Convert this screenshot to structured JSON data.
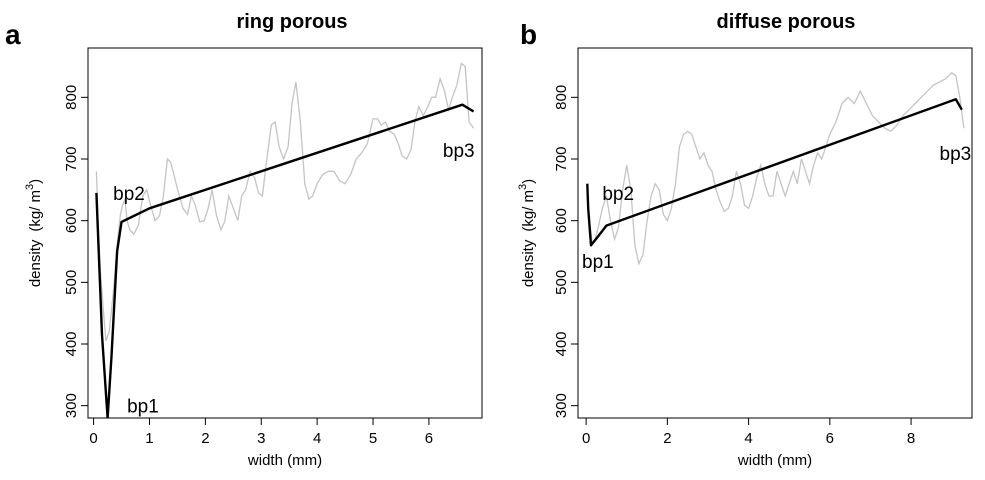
{
  "chart_data": [
    {
      "panel": "a",
      "type": "line",
      "title": "ring porous",
      "xlabel": "width (mm)",
      "ylabel": {
        "prefix": "density",
        "unit_base": "(kg/ m",
        "unit_exp": "3",
        "unit_close": ")"
      },
      "xlim": [
        -0.1,
        6.95
      ],
      "ylim": [
        280,
        880
      ],
      "x_ticks": [
        0,
        1,
        2,
        3,
        4,
        5,
        6
      ],
      "y_ticks": [
        300,
        400,
        500,
        600,
        700,
        800
      ],
      "grid": false,
      "series": [
        {
          "role": "fit",
          "x": [
            0.05,
            0.15,
            0.25,
            0.32,
            0.42,
            0.5,
            1.0,
            6.6,
            6.8
          ],
          "y": [
            645,
            415,
            280,
            380,
            550,
            598,
            620,
            788,
            777
          ]
        },
        {
          "role": "raw",
          "x": [
            0.05,
            0.08,
            0.12,
            0.18,
            0.22,
            0.28,
            0.35,
            0.42,
            0.48,
            0.52,
            0.56,
            0.6,
            0.65,
            0.72,
            0.8,
            0.88,
            0.95,
            1.02,
            1.1,
            1.18,
            1.25,
            1.32,
            1.38,
            1.45,
            1.52,
            1.6,
            1.68,
            1.75,
            1.82,
            1.9,
            1.98,
            2.05,
            2.12,
            2.2,
            2.28,
            2.35,
            2.42,
            2.5,
            2.58,
            2.65,
            2.72,
            2.8,
            2.88,
            2.95,
            3.02,
            3.1,
            3.18,
            3.25,
            3.32,
            3.4,
            3.48,
            3.55,
            3.62,
            3.7,
            3.78,
            3.85,
            3.92,
            4.0,
            4.1,
            4.2,
            4.3,
            4.4,
            4.5,
            4.6,
            4.7,
            4.8,
            4.9,
            5.0,
            5.08,
            5.15,
            5.22,
            5.3,
            5.38,
            5.45,
            5.52,
            5.6,
            5.68,
            5.75,
            5.82,
            5.9,
            5.98,
            6.05,
            6.12,
            6.2,
            6.28,
            6.35,
            6.42,
            6.5,
            6.58,
            6.65,
            6.72,
            6.8
          ],
          "y": [
            680,
            600,
            520,
            450,
            405,
            420,
            480,
            560,
            610,
            625,
            635,
            600,
            585,
            578,
            592,
            640,
            650,
            625,
            600,
            608,
            640,
            700,
            695,
            670,
            645,
            620,
            610,
            640,
            625,
            598,
            600,
            620,
            650,
            608,
            585,
            600,
            640,
            620,
            600,
            640,
            650,
            680,
            670,
            645,
            640,
            700,
            755,
            760,
            720,
            700,
            720,
            790,
            825,
            760,
            660,
            635,
            640,
            660,
            675,
            680,
            680,
            665,
            660,
            675,
            700,
            710,
            725,
            765,
            765,
            755,
            760,
            745,
            740,
            725,
            705,
            700,
            715,
            760,
            785,
            770,
            785,
            800,
            800,
            830,
            810,
            780,
            800,
            820,
            855,
            850,
            760,
            750
          ]
        }
      ],
      "annotations": [
        {
          "text": "bp1",
          "x": 0.6,
          "y": 300
        },
        {
          "text": "bp2",
          "x": 0.35,
          "y": 645
        },
        {
          "text": "bp3",
          "x": 6.25,
          "y": 715
        }
      ]
    },
    {
      "panel": "b",
      "type": "line",
      "title": "diffuse porous",
      "xlabel": "width (mm)",
      "ylabel": {
        "prefix": "density",
        "unit_base": "(kg/ m",
        "unit_exp": "3",
        "unit_close": ")"
      },
      "xlim": [
        -0.2,
        9.5
      ],
      "ylim": [
        280,
        880
      ],
      "x_ticks": [
        0,
        2,
        4,
        6,
        8
      ],
      "y_ticks": [
        300,
        400,
        500,
        600,
        700,
        800
      ],
      "grid": false,
      "series": [
        {
          "role": "fit",
          "x": [
            0.03,
            0.05,
            0.12,
            0.3,
            0.5,
            9.1,
            9.25
          ],
          "y": [
            660,
            620,
            560,
            575,
            592,
            797,
            780
          ]
        },
        {
          "role": "raw",
          "x": [
            0.03,
            0.08,
            0.15,
            0.22,
            0.3,
            0.4,
            0.5,
            0.6,
            0.7,
            0.8,
            0.9,
            1.0,
            1.1,
            1.2,
            1.3,
            1.4,
            1.5,
            1.6,
            1.7,
            1.8,
            1.9,
            2.0,
            2.1,
            2.2,
            2.3,
            2.4,
            2.5,
            2.6,
            2.7,
            2.8,
            2.9,
            3.0,
            3.1,
            3.2,
            3.3,
            3.4,
            3.5,
            3.6,
            3.7,
            3.8,
            3.9,
            4.0,
            4.1,
            4.2,
            4.3,
            4.4,
            4.5,
            4.6,
            4.7,
            4.8,
            4.9,
            5.0,
            5.1,
            5.2,
            5.3,
            5.4,
            5.5,
            5.6,
            5.7,
            5.8,
            5.9,
            6.0,
            6.15,
            6.3,
            6.45,
            6.6,
            6.75,
            6.9,
            7.05,
            7.2,
            7.35,
            7.5,
            7.65,
            7.8,
            7.95,
            8.1,
            8.25,
            8.4,
            8.55,
            8.7,
            8.85,
            9.0,
            9.1,
            9.2,
            9.3
          ],
          "y": [
            640,
            600,
            565,
            570,
            590,
            620,
            640,
            600,
            570,
            590,
            650,
            690,
            650,
            560,
            530,
            545,
            600,
            640,
            660,
            650,
            610,
            600,
            620,
            660,
            720,
            740,
            745,
            740,
            720,
            700,
            710,
            690,
            680,
            650,
            630,
            615,
            620,
            640,
            680,
            660,
            625,
            620,
            640,
            670,
            690,
            660,
            640,
            640,
            680,
            660,
            640,
            660,
            680,
            660,
            700,
            680,
            660,
            690,
            710,
            700,
            720,
            740,
            760,
            790,
            800,
            790,
            810,
            790,
            770,
            760,
            750,
            745,
            755,
            770,
            780,
            790,
            800,
            810,
            820,
            825,
            830,
            840,
            835,
            800,
            750
          ]
        }
      ],
      "annotations": [
        {
          "text": "bp1",
          "x": -0.1,
          "y": 535
        },
        {
          "text": "bp2",
          "x": 0.4,
          "y": 645
        },
        {
          "text": "bp3",
          "x": 8.7,
          "y": 710
        }
      ]
    }
  ]
}
